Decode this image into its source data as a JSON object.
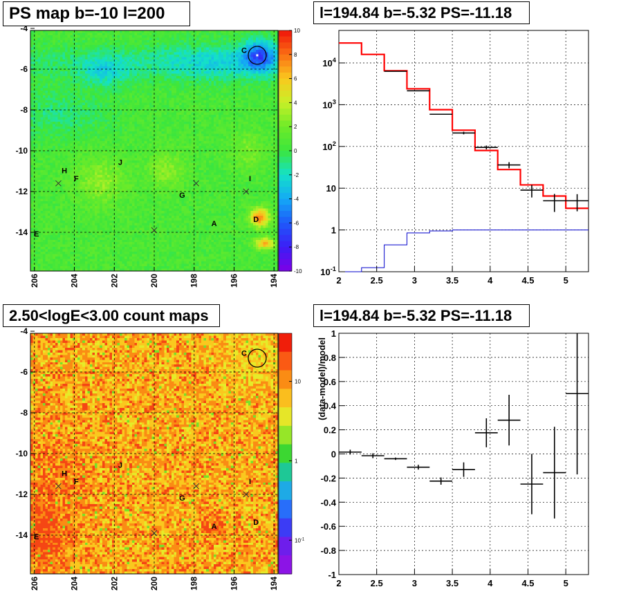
{
  "panels": {
    "ps_map": {
      "title": "PS map b=-10 l=200"
    },
    "spectrum": {
      "title": "l=194.84 b=-5.32 PS=-11.18"
    },
    "count_map": {
      "title": "2.50<logE<3.00 count maps"
    },
    "residual": {
      "title": "l=194.84 b=-5.32 PS=-11.18"
    }
  },
  "chart_data": [
    {
      "type": "heatmap",
      "title": "PS map b=-10 l=200",
      "xlim": [
        206.2,
        193.8
      ],
      "ylim": [
        -15.9,
        -4.1
      ],
      "x_ticks": [
        "206",
        "204",
        "202",
        "200",
        "198",
        "196",
        "194"
      ],
      "y_ticks": [
        "-4",
        "-6",
        "-8",
        "-10",
        "-12",
        "-14"
      ],
      "grid": true,
      "colorbar": {
        "scale": "linear",
        "range": [
          -10,
          10
        ],
        "ticks": [
          "10",
          "8",
          "6",
          "4",
          "2",
          "0",
          "-2",
          "-4",
          "-6",
          "-8",
          "-10"
        ]
      },
      "sources": [
        {
          "label": "A",
          "l": 197.0,
          "b": -13.7
        },
        {
          "label": "C",
          "l": 195.5,
          "b": -5.2
        },
        {
          "label": "D",
          "l": 194.9,
          "b": -13.5
        },
        {
          "label": "E",
          "l": 205.9,
          "b": -14.2
        },
        {
          "label": "F",
          "l": 203.9,
          "b": -11.5
        },
        {
          "label": "G",
          "l": 198.6,
          "b": -12.3
        },
        {
          "label": "H",
          "l": 204.5,
          "b": -11.1
        },
        {
          "label": "I",
          "l": 195.2,
          "b": -11.5
        },
        {
          "label": "J",
          "l": 201.7,
          "b": -10.7
        }
      ],
      "markers": [
        {
          "l": 204.8,
          "b": -11.6
        },
        {
          "l": 200.0,
          "b": -13.9
        },
        {
          "l": 197.9,
          "b": -11.6
        },
        {
          "l": 195.4,
          "b": -12.0
        }
      ],
      "circle": {
        "l": 194.84,
        "b": -5.32
      }
    },
    {
      "type": "line",
      "title": "l=194.84 b=-5.32 PS=-11.18",
      "yscale": "log",
      "xlim": [
        2.0,
        5.3
      ],
      "ylim": [
        0.1,
        60000
      ],
      "x_ticks": [
        "2",
        "2.5",
        "3",
        "3.5",
        "4",
        "4.5",
        "5"
      ],
      "y_ticks": [
        "10^-1",
        "1",
        "10",
        "10^2",
        "10^3",
        "10^4"
      ],
      "grid": true,
      "bin_edges": [
        2.0,
        2.3,
        2.6,
        2.9,
        3.2,
        3.5,
        3.8,
        4.1,
        4.4,
        4.7,
        5.0,
        5.3
      ],
      "series": [
        {
          "color": "#ff0000",
          "kind": "model_histogram",
          "values": [
            30000,
            16000,
            6500,
            2400,
            760,
            245,
            80,
            28,
            12,
            6.5,
            3.3
          ]
        },
        {
          "color": "#0000cc",
          "kind": "ratio_histogram",
          "values": [
            0.1,
            0.125,
            0.44,
            0.85,
            0.95,
            1.0,
            1.0,
            1.0,
            1.0,
            1.0,
            1.0
          ]
        },
        {
          "color": "#000000",
          "kind": "data_points",
          "points": [
            {
              "x": 2.75,
              "y": 6300,
              "yerr": 0
            },
            {
              "x": 3.05,
              "y": 2150,
              "yerr": 0
            },
            {
              "x": 3.35,
              "y": 590,
              "yerr": 0
            },
            {
              "x": 3.65,
              "y": 210,
              "yerr": 15
            },
            {
              "x": 3.95,
              "y": 95,
              "yerr": 10
            },
            {
              "x": 4.25,
              "y": 36,
              "yerr": 6
            },
            {
              "x": 4.55,
              "y": 9.0,
              "yerr": 3.0
            },
            {
              "x": 4.85,
              "y": 5.0,
              "yerr": 2.3
            },
            {
              "x": 5.15,
              "y": 5.0,
              "yerr": 2.2
            }
          ]
        }
      ]
    },
    {
      "type": "heatmap",
      "title": "2.50<logE<3.00 count maps",
      "xlim": [
        206.2,
        193.8
      ],
      "ylim": [
        -15.9,
        -4.1
      ],
      "x_ticks": [
        "206",
        "204",
        "202",
        "200",
        "198",
        "196",
        "194"
      ],
      "y_ticks": [
        "-4",
        "-6",
        "-8",
        "-10",
        "-12",
        "-14"
      ],
      "grid": true,
      "colorbar": {
        "scale": "log",
        "labels": [
          "10",
          "1",
          "10^-1"
        ]
      },
      "sources": [
        {
          "label": "A",
          "l": 197.0,
          "b": -13.7
        },
        {
          "label": "C",
          "l": 195.5,
          "b": -5.2
        },
        {
          "label": "D",
          "l": 194.9,
          "b": -13.5
        },
        {
          "label": "E",
          "l": 205.9,
          "b": -14.2
        },
        {
          "label": "F",
          "l": 203.9,
          "b": -11.5
        },
        {
          "label": "G",
          "l": 198.6,
          "b": -12.3
        },
        {
          "label": "H",
          "l": 204.5,
          "b": -11.1
        },
        {
          "label": "I",
          "l": 195.2,
          "b": -11.5
        },
        {
          "label": "J",
          "l": 201.7,
          "b": -10.7
        }
      ],
      "markers": [
        {
          "l": 204.8,
          "b": -11.6
        },
        {
          "l": 200.0,
          "b": -13.9
        },
        {
          "l": 197.9,
          "b": -11.6
        },
        {
          "l": 195.4,
          "b": -12.0
        }
      ],
      "circle": {
        "l": 194.84,
        "b": -5.32
      }
    },
    {
      "type": "scatter",
      "title": "l=194.84 b=-5.32 PS=-11.18",
      "ylabel": "(data-model)/model",
      "xlim": [
        2.0,
        5.3
      ],
      "ylim": [
        -1.0,
        1.0
      ],
      "x_ticks": [
        "2",
        "2.5",
        "3",
        "3.5",
        "4",
        "4.5",
        "5"
      ],
      "y_ticks": [
        "1",
        "0.8",
        "0.6",
        "0.4",
        "0.2",
        "0",
        "-0.2",
        "-0.4",
        "-0.6",
        "-0.8",
        "-1"
      ],
      "grid": true,
      "points": [
        {
          "x": 2.15,
          "y": 0.015,
          "xerr": 0.15,
          "yerr": 0.02
        },
        {
          "x": 2.45,
          "y": -0.015,
          "xerr": 0.15,
          "yerr": 0.02
        },
        {
          "x": 2.75,
          "y": -0.04,
          "xerr": 0.15,
          "yerr": 0.01
        },
        {
          "x": 3.05,
          "y": -0.11,
          "xerr": 0.15,
          "yerr": 0.02
        },
        {
          "x": 3.35,
          "y": -0.225,
          "xerr": 0.15,
          "yerr": 0.03
        },
        {
          "x": 3.65,
          "y": -0.13,
          "xerr": 0.15,
          "yerr": 0.06
        },
        {
          "x": 3.95,
          "y": 0.175,
          "xerr": 0.15,
          "yerr": 0.12
        },
        {
          "x": 4.25,
          "y": 0.28,
          "xerr": 0.15,
          "yerr": 0.21
        },
        {
          "x": 4.55,
          "y": -0.25,
          "xerr": 0.15,
          "yerr": 0.25
        },
        {
          "x": 4.85,
          "y": -0.155,
          "xerr": 0.15,
          "yerr": 0.38
        },
        {
          "x": 5.15,
          "y": 0.5,
          "xerr": 0.15,
          "yerr": 0.67
        }
      ]
    }
  ]
}
